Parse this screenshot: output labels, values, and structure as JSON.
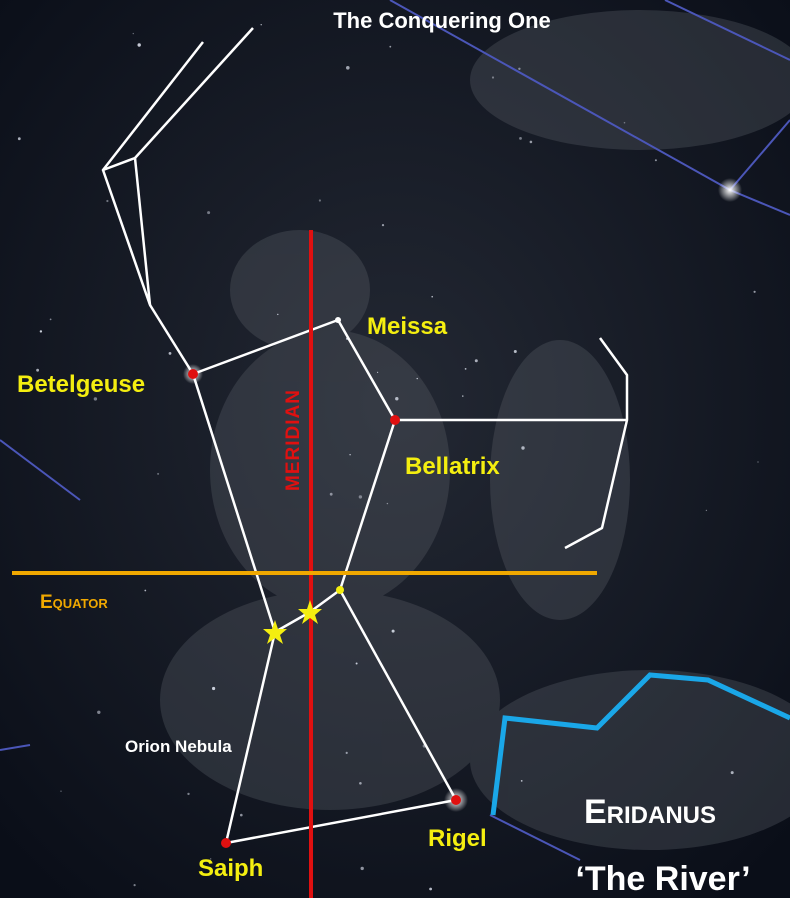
{
  "title": "The Conquering One",
  "stars": [
    {
      "label": "Betelgeuse"
    },
    {
      "label": "Meissa"
    },
    {
      "label": "Bellatrix"
    },
    {
      "label": "Saiph"
    },
    {
      "label": "Rigel"
    }
  ],
  "nebula": "Orion Nebula",
  "meridian": "Meridian",
  "equator": "Equator",
  "constellation": {
    "name": "Eridanus",
    "subtitle": "‘The River’"
  }
}
